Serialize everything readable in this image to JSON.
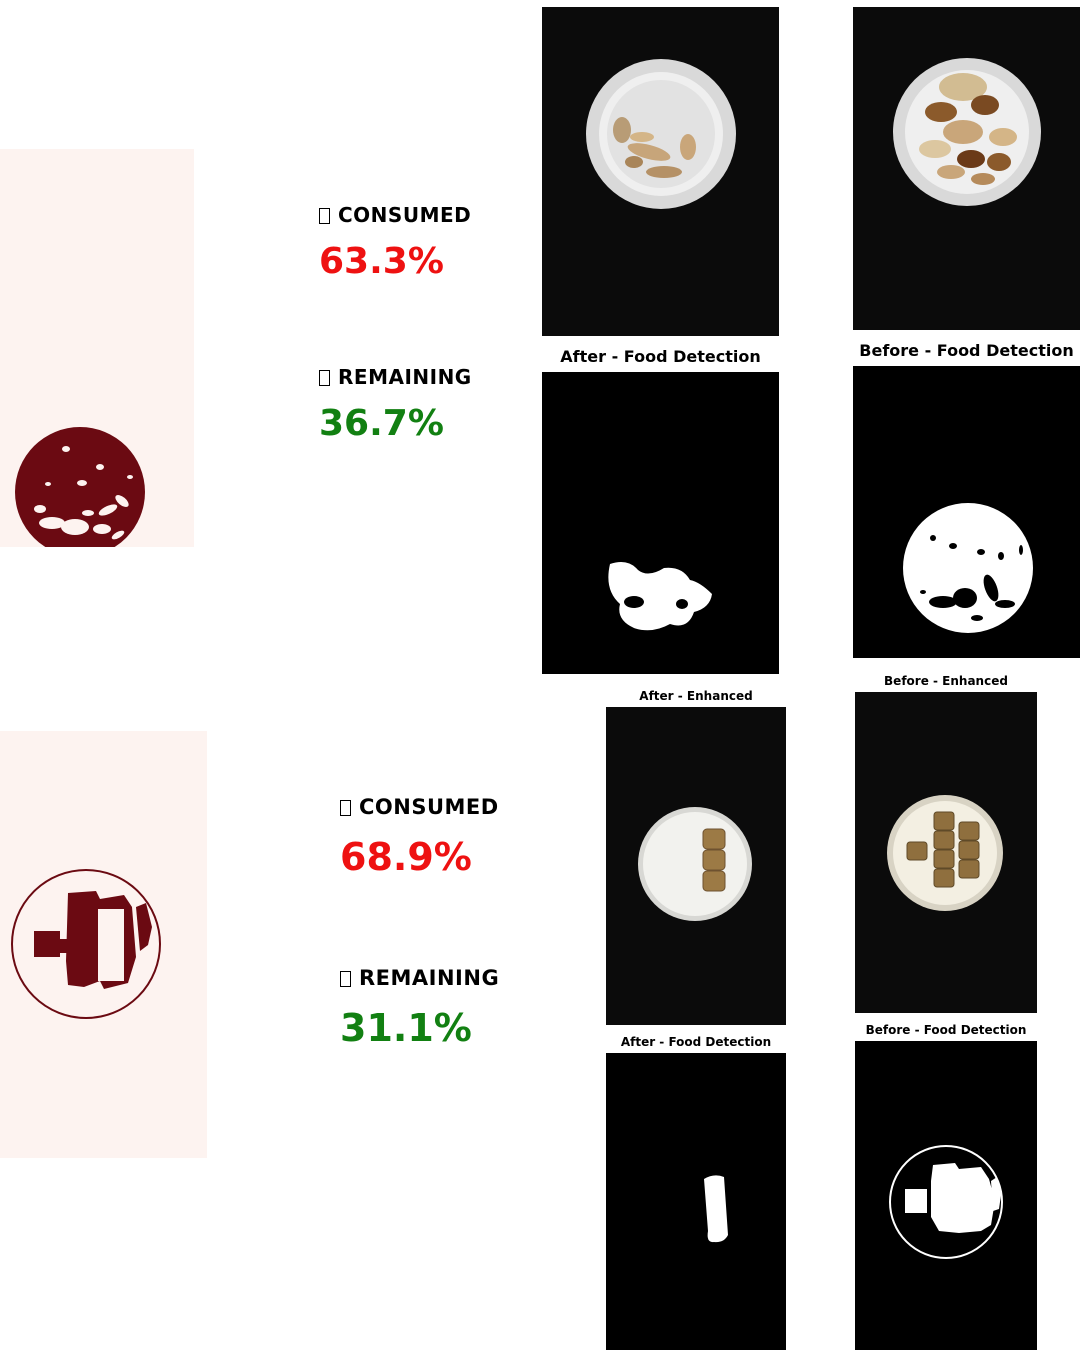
{
  "colors": {
    "consumed": "#ee1111",
    "remaining": "#128012",
    "mask": "#6b0a12",
    "panel_bg": "#fdf3f0"
  },
  "row1": {
    "consumed_icon": "box-icon",
    "consumed_label": "CONSUMED",
    "consumed_value": "63.3%",
    "remaining_icon": "box-icon",
    "remaining_label": "REMAINING",
    "remaining_value": "36.7%",
    "after_detection_title": "After - Food Detection",
    "before_detection_title": "Before - Food Detection"
  },
  "row2": {
    "consumed_icon": "box-icon",
    "consumed_label": "CONSUMED",
    "consumed_value": "68.9%",
    "remaining_icon": "box-icon",
    "remaining_label": "REMAINING",
    "remaining_value": "31.1%",
    "after_enhanced_title": "After - Enhanced",
    "before_enhanced_title": "Before - Enhanced",
    "after_detection_title": "After - Food Detection",
    "before_detection_title": "Before - Food Detection"
  }
}
